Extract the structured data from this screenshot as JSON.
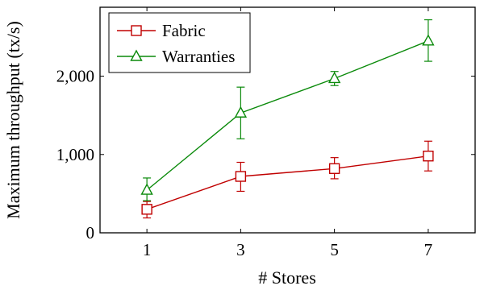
{
  "chart_data": {
    "type": "line",
    "title": "",
    "xlabel": "# Stores",
    "ylabel": "Maximum throughput (tx/s)",
    "x": [
      1,
      3,
      5,
      7
    ],
    "x_tick_labels": [
      "1",
      "3",
      "5",
      "7"
    ],
    "xlim": [
      0,
      8
    ],
    "ylim": [
      0,
      2880
    ],
    "y_ticks": [
      0,
      1000,
      2000
    ],
    "y_tick_labels": [
      "0",
      "1,000",
      "2,000"
    ],
    "grid": false,
    "legend_position": "top-left",
    "series": [
      {
        "name": "Fabric",
        "color": "#c00000",
        "marker": "square",
        "values": [
          300,
          720,
          820,
          980
        ],
        "error_low": [
          190,
          530,
          690,
          790
        ],
        "error_high": [
          400,
          900,
          960,
          1170
        ]
      },
      {
        "name": "Warranties",
        "color": "#0a8a0a",
        "marker": "triangle",
        "values": [
          545,
          1530,
          1970,
          2450
        ],
        "error_low": [
          410,
          1200,
          1880,
          2190
        ],
        "error_high": [
          700,
          1860,
          2060,
          2720
        ]
      }
    ]
  }
}
